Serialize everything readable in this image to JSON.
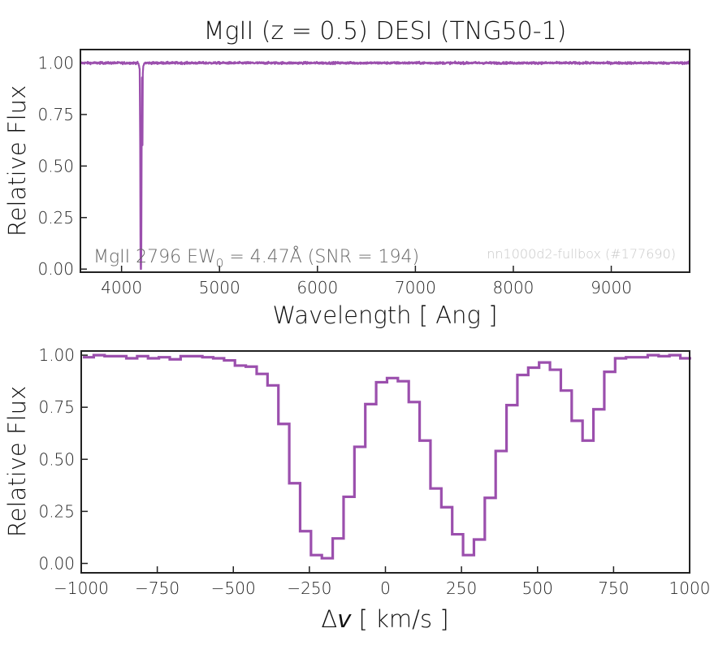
{
  "chart_data": [
    {
      "type": "line",
      "title": "MgII (z = 0.5) DESI (TNG50-1)",
      "xlabel": "Wavelength [ Ang ]",
      "ylabel": "Relative Flux",
      "xlim": [
        3580,
        9800
      ],
      "ylim": [
        -0.015,
        1.065
      ],
      "xticks": [
        4000,
        5000,
        6000,
        7000,
        8000,
        9000
      ],
      "xtick_labels": [
        "4000",
        "5000",
        "6000",
        "7000",
        "8000",
        "9000"
      ],
      "yticks": [
        0.0,
        0.25,
        0.5,
        0.75,
        1.0
      ],
      "ytick_labels": [
        "0.00",
        "0.25",
        "0.50",
        "0.75",
        "1.00"
      ],
      "color": "#9b4fad",
      "series": [
        {
          "name": "spectrum",
          "continuum": 1.0,
          "noise_sigma": 0.005,
          "x": [
            3580,
            4170,
            4185,
            4190,
            4193,
            4196,
            4199,
            4202,
            4205,
            4208,
            4211,
            4214,
            4217,
            4222,
            4235,
            9800
          ],
          "y": [
            1.0,
            1.0,
            0.97,
            0.6,
            0.1,
            0.0,
            0.0,
            0.1,
            0.55,
            0.95,
            0.62,
            0.6,
            0.95,
            0.985,
            1.0,
            1.0
          ]
        }
      ],
      "annotation": {
        "prefix": "MgII 2796 EW",
        "subscript": "0",
        "suffix": " = 4.47Å (SNR = 194)"
      },
      "watermark": "nn1000d2-fullbox (#177690)"
    },
    {
      "type": "line",
      "drawstyle": "steps-mid",
      "xlabel_prefix": "Δ",
      "xlabel_var": "v",
      "xlabel_suffix": " [ km/s ]",
      "ylabel": "Relative Flux",
      "xlim": [
        -1000,
        1000
      ],
      "ylim": [
        -0.045,
        1.02
      ],
      "xticks": [
        -1000,
        -750,
        -500,
        -250,
        0,
        250,
        500,
        750,
        1000
      ],
      "xtick_labels": [
        "−1000",
        "−750",
        "−500",
        "−250",
        "0",
        "250",
        "500",
        "750",
        "1000"
      ],
      "yticks": [
        0.0,
        0.25,
        0.5,
        0.75,
        1.0
      ],
      "ytick_labels": [
        "0.00",
        "0.25",
        "0.50",
        "0.75",
        "1.00"
      ],
      "color": "#9b4fad",
      "bin_width": 35.71,
      "series": [
        {
          "name": "velocity profile",
          "values": [
            0.99,
            1.0,
            0.995,
            0.995,
            0.985,
            0.995,
            0.985,
            0.99,
            0.98,
            0.995,
            0.995,
            0.99,
            0.985,
            0.975,
            0.95,
            0.945,
            0.91,
            0.855,
            0.67,
            0.385,
            0.155,
            0.04,
            0.025,
            0.12,
            0.32,
            0.56,
            0.765,
            0.87,
            0.89,
            0.875,
            0.775,
            0.59,
            0.36,
            0.27,
            0.14,
            0.04,
            0.115,
            0.315,
            0.54,
            0.76,
            0.905,
            0.94,
            0.965,
            0.93,
            0.83,
            0.685,
            0.59,
            0.74,
            0.92,
            0.985,
            0.99,
            0.99,
            1.0,
            0.995,
            1.0,
            0.985
          ]
        }
      ]
    }
  ]
}
